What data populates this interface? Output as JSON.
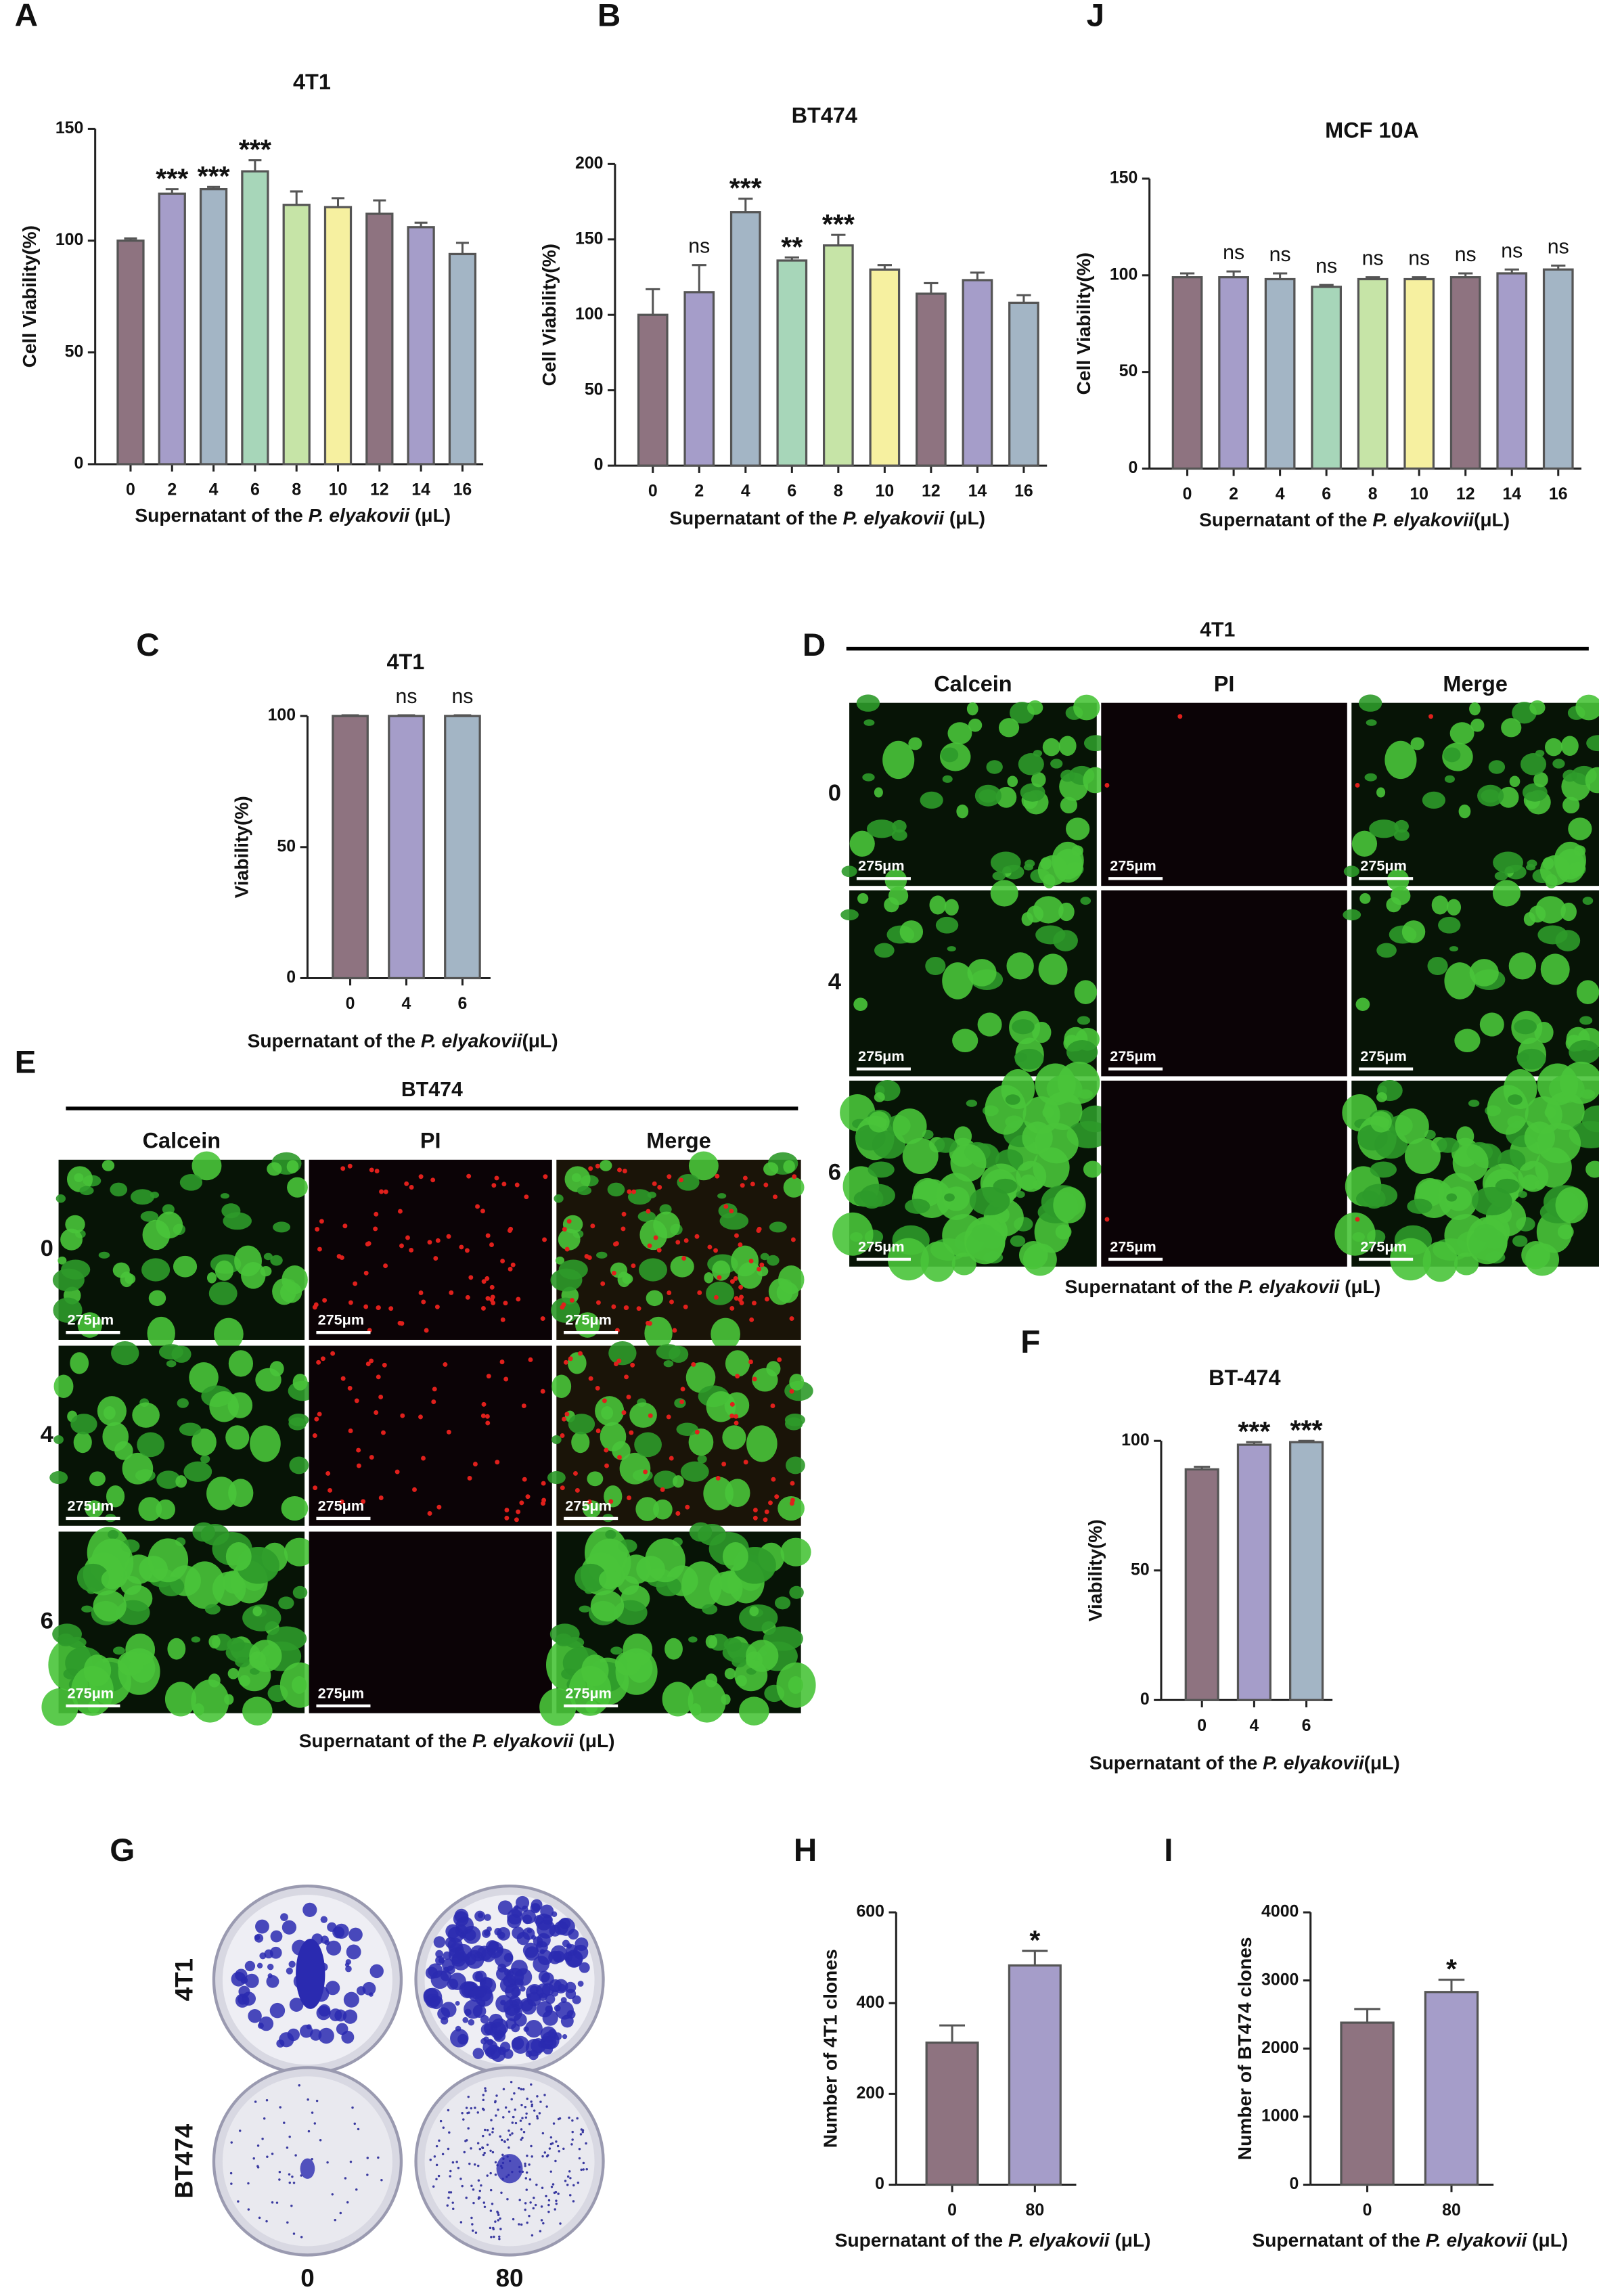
{
  "chart_data": [
    {
      "type": "bar",
      "panel_label": "A",
      "title": "4T1",
      "ylabel": "Cell Viability(%)",
      "xlabel_parts": [
        "Supernatant of the ",
        "P. elyakovii",
        " (μL)"
      ],
      "categories": [
        "0",
        "2",
        "4",
        "6",
        "8",
        "10",
        "12",
        "14",
        "16"
      ],
      "values": [
        100,
        121,
        123,
        131,
        116,
        115,
        112,
        106,
        94
      ],
      "errors": [
        1,
        2,
        1,
        5,
        6,
        4,
        6,
        2,
        5
      ],
      "annotations": [
        null,
        "***",
        "***",
        "***",
        null,
        null,
        null,
        null,
        null
      ],
      "colors": [
        "#8e7380",
        "#a59dc9",
        "#a3b5c5",
        "#a7d6b9",
        "#c6e4a7",
        "#f6f0a0",
        "#8e7380",
        "#a59dc9",
        "#a3b5c5"
      ],
      "ylim": [
        0,
        150
      ],
      "yticks": [
        0,
        50,
        100,
        150
      ]
    },
    {
      "type": "bar",
      "panel_label": "B",
      "title": "BT474",
      "ylabel": "Cell Viability(%)",
      "xlabel_parts": [
        "Supernatant of the ",
        "P. elyakovii",
        " (μL)"
      ],
      "categories": [
        "0",
        "2",
        "4",
        "6",
        "8",
        "10",
        "12",
        "14",
        "16"
      ],
      "values": [
        100,
        115,
        168,
        136,
        146,
        130,
        114,
        123,
        108
      ],
      "errors": [
        17,
        18,
        9,
        2,
        7,
        3,
        7,
        5,
        5
      ],
      "annotations": [
        null,
        "ns",
        "***",
        "**",
        "***",
        null,
        null,
        null,
        null
      ],
      "colors": [
        "#8e7380",
        "#a59dc9",
        "#a3b5c5",
        "#a7d6b9",
        "#c6e4a7",
        "#f6f0a0",
        "#8e7380",
        "#a59dc9",
        "#a3b5c5"
      ],
      "ylim": [
        0,
        200
      ],
      "yticks": [
        0,
        50,
        100,
        150,
        200
      ]
    },
    {
      "type": "bar",
      "panel_label": "J",
      "title": "MCF 10A",
      "ylabel": "Cell Viability(%)",
      "xlabel_parts": [
        "Supernatant of the ",
        "P. elyakovii",
        "(μL)"
      ],
      "categories": [
        "0",
        "2",
        "4",
        "6",
        "8",
        "10",
        "12",
        "14",
        "16"
      ],
      "values": [
        99,
        99,
        98,
        94,
        98,
        98,
        99,
        101,
        103
      ],
      "errors": [
        2,
        3,
        3,
        1,
        1,
        1,
        2,
        2,
        2
      ],
      "annotations": [
        null,
        "ns",
        "ns",
        "ns",
        "ns",
        "ns",
        "ns",
        "ns",
        "ns"
      ],
      "colors": [
        "#8e7380",
        "#a59dc9",
        "#a3b5c5",
        "#a7d6b9",
        "#c6e4a7",
        "#f6f0a0",
        "#8e7380",
        "#a59dc9",
        "#a3b5c5"
      ],
      "ylim": [
        0,
        150
      ],
      "yticks": [
        0,
        50,
        100,
        150
      ]
    },
    {
      "type": "bar",
      "panel_label": "C",
      "title": "4T1",
      "ylabel": "Viability(%)",
      "xlabel_parts": [
        "Supernatant of the ",
        "P. elyakovii",
        "(μL)"
      ],
      "categories": [
        "0",
        "4",
        "6"
      ],
      "values": [
        100,
        100,
        100
      ],
      "errors": [
        0.3,
        0.3,
        0.3
      ],
      "annotations": [
        null,
        "ns",
        "ns"
      ],
      "colors": [
        "#8e7380",
        "#a59dc9",
        "#a3b5c5"
      ],
      "ylim": [
        0,
        100
      ],
      "yticks": [
        0,
        50,
        100
      ]
    },
    {
      "type": "bar",
      "panel_label": "F",
      "title": "BT-474",
      "ylabel": "Viability(%)",
      "xlabel_parts": [
        "Supernatant of the ",
        "P. elyakovii",
        "(μL)"
      ],
      "categories": [
        "0",
        "4",
        "6"
      ],
      "values": [
        89,
        98.5,
        99.5
      ],
      "errors": [
        1,
        1,
        0.5
      ],
      "annotations": [
        null,
        "***",
        "***"
      ],
      "colors": [
        "#8e7380",
        "#a59dc9",
        "#a3b5c5"
      ],
      "ylim": [
        0,
        100
      ],
      "yticks": [
        0,
        50,
        100
      ]
    },
    {
      "type": "bar",
      "panel_label": "H",
      "ylabel": "Number of 4T1 clones",
      "xlabel_parts": [
        "Supernatant of the ",
        "P. elyakovii",
        " (μL)"
      ],
      "categories": [
        "0",
        "80"
      ],
      "values": [
        313,
        483
      ],
      "errors": [
        38,
        32
      ],
      "annotations": [
        null,
        "*"
      ],
      "colors": [
        "#8e7380",
        "#a59dc9"
      ],
      "ylim": [
        0,
        600
      ],
      "yticks": [
        0,
        200,
        400,
        600
      ]
    },
    {
      "type": "bar",
      "panel_label": "I",
      "ylabel": "Number of BT474 clones",
      "xlabel_parts": [
        "Supernatant of the ",
        "P. elyakovii",
        " (μL)"
      ],
      "categories": [
        "0",
        "80"
      ],
      "values": [
        2380,
        2830
      ],
      "errors": [
        200,
        180
      ],
      "annotations": [
        null,
        "*"
      ],
      "colors": [
        "#8e7380",
        "#a59dc9"
      ],
      "ylim": [
        0,
        4000
      ],
      "yticks": [
        0,
        1000,
        2000,
        3000,
        4000
      ]
    }
  ],
  "image_panels": [
    {
      "panel_label": "D",
      "title": "4T1",
      "columns": [
        "Calcein",
        "PI",
        "Merge"
      ],
      "rows": [
        "0",
        "4",
        "6"
      ],
      "scale_bar": "275μm",
      "xlabel_parts": [
        "Supernatant of the ",
        "P. elyakovii",
        " (μL)"
      ]
    },
    {
      "panel_label": "E",
      "title": "BT474",
      "columns": [
        "Calcein",
        "PI",
        "Merge"
      ],
      "rows": [
        "0",
        "4",
        "6"
      ],
      "scale_bar": "275μm",
      "xlabel_parts": [
        "Supernatant of the ",
        "P. elyakovii",
        " (μL)"
      ]
    }
  ],
  "plate_panel": {
    "panel_label": "G",
    "rows": [
      "4T1",
      "BT474"
    ],
    "columns": [
      "0",
      "80"
    ]
  }
}
